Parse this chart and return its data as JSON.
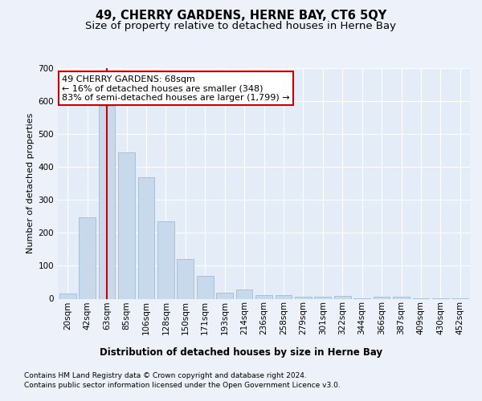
{
  "title": "49, CHERRY GARDENS, HERNE BAY, CT6 5QY",
  "subtitle": "Size of property relative to detached houses in Herne Bay",
  "xlabel": "Distribution of detached houses by size in Herne Bay",
  "ylabel": "Number of detached properties",
  "categories": [
    "20sqm",
    "42sqm",
    "63sqm",
    "85sqm",
    "106sqm",
    "128sqm",
    "150sqm",
    "171sqm",
    "193sqm",
    "214sqm",
    "236sqm",
    "258sqm",
    "279sqm",
    "301sqm",
    "322sqm",
    "344sqm",
    "366sqm",
    "387sqm",
    "409sqm",
    "430sqm",
    "452sqm"
  ],
  "values": [
    15,
    248,
    585,
    445,
    370,
    235,
    120,
    70,
    18,
    28,
    10,
    10,
    7,
    5,
    8,
    2,
    6,
    5,
    2,
    1,
    2
  ],
  "bar_color": "#c9d9ec",
  "bar_edgecolor": "#a8c0d8",
  "vline_x": 2,
  "vline_color": "#cc0000",
  "ann_line1": "49 CHERRY GARDENS: 68sqm",
  "ann_line2": "← 16% of detached houses are smaller (348)",
  "ann_line3": "83% of semi-detached houses are larger (1,799) →",
  "annotation_box_facecolor": "#ffffff",
  "annotation_box_edgecolor": "#cc0000",
  "ylim": [
    0,
    700
  ],
  "yticks": [
    0,
    100,
    200,
    300,
    400,
    500,
    600,
    700
  ],
  "footer1": "Contains HM Land Registry data © Crown copyright and database right 2024.",
  "footer2": "Contains public sector information licensed under the Open Government Licence v3.0.",
  "bg_color": "#edf2fa",
  "plot_bg_color": "#e4ecf7",
  "title_fontsize": 10.5,
  "subtitle_fontsize": 9.5,
  "xlabel_fontsize": 8.5,
  "ylabel_fontsize": 8,
  "tick_fontsize": 7.5,
  "ann_fontsize": 8,
  "footer_fontsize": 6.5
}
